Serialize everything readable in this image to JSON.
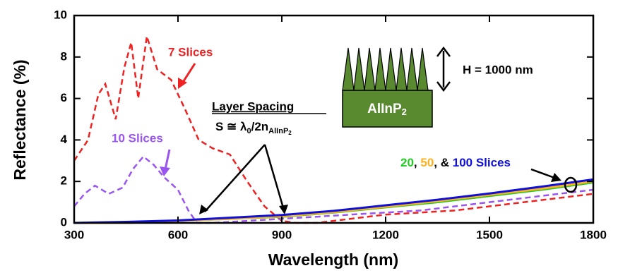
{
  "chart_data": {
    "type": "line",
    "xlabel": "Wavelength (nm)",
    "ylabel": "Reflectance (%)",
    "xlim": [
      300,
      1800
    ],
    "ylim": [
      0,
      10
    ],
    "xticks": [
      300,
      600,
      900,
      1200,
      1500,
      1800
    ],
    "yticks": [
      0,
      2,
      4,
      6,
      8,
      10
    ],
    "series": [
      {
        "name": "7 Slices",
        "color": "#ee2222",
        "dashed": true,
        "x": [
          300,
          340,
          370,
          390,
          420,
          445,
          465,
          485,
          510,
          540,
          580,
          620,
          660,
          700,
          750,
          800,
          850,
          900,
          940,
          1000,
          1100,
          1200,
          1300,
          1400,
          1500,
          1600,
          1700,
          1800
        ],
        "values": [
          3.0,
          4.0,
          6.2,
          6.7,
          5.0,
          7.5,
          8.7,
          6.0,
          9.0,
          7.4,
          6.9,
          5.5,
          4.0,
          3.6,
          3.3,
          2.0,
          0.8,
          0.1,
          0.0,
          0.0,
          0.2,
          0.4,
          0.5,
          0.6,
          0.8,
          1.0,
          1.2,
          1.4
        ]
      },
      {
        "name": "10 Slices",
        "color": "#9955ee",
        "dashed": true,
        "x": [
          300,
          330,
          360,
          400,
          440,
          470,
          500,
          530,
          560,
          600,
          630,
          655,
          700,
          800,
          900,
          1000,
          1100,
          1200,
          1300,
          1400,
          1500,
          1600,
          1700,
          1800
        ],
        "values": [
          0.8,
          1.4,
          1.8,
          1.4,
          1.7,
          2.6,
          3.2,
          2.8,
          2.2,
          1.6,
          0.6,
          0.0,
          0.0,
          0.1,
          0.2,
          0.3,
          0.4,
          0.5,
          0.6,
          0.8,
          1.0,
          1.2,
          1.4,
          1.6
        ]
      },
      {
        "name": "20",
        "color": "#22cc22",
        "dashed": false,
        "x": [
          300,
          450,
          600,
          750,
          900,
          1050,
          1200,
          1350,
          1500,
          1650,
          1800
        ],
        "values": [
          0.0,
          0.0,
          0.1,
          0.2,
          0.3,
          0.5,
          0.75,
          1.0,
          1.3,
          1.6,
          1.95
        ]
      },
      {
        "name": "50",
        "color": "#ffb020",
        "dashed": false,
        "x": [
          300,
          450,
          600,
          750,
          900,
          1050,
          1200,
          1350,
          1500,
          1650,
          1800
        ],
        "values": [
          0.0,
          0.0,
          0.1,
          0.2,
          0.32,
          0.52,
          0.78,
          1.05,
          1.35,
          1.65,
          2.0
        ]
      },
      {
        "name": "100 Slices",
        "color": "#1010dd",
        "dashed": false,
        "x": [
          300,
          450,
          600,
          750,
          900,
          1050,
          1200,
          1350,
          1500,
          1650,
          1800
        ],
        "values": [
          0.0,
          0.05,
          0.12,
          0.25,
          0.38,
          0.58,
          0.85,
          1.12,
          1.42,
          1.75,
          2.1
        ]
      }
    ],
    "annotations": {
      "layer_spacing": "Layer Spacing",
      "formula_main": "S ≅ λ",
      "formula_sub0": "0",
      "formula_mid": "/2n",
      "formula_sub1": "AlInP",
      "formula_sub2": "2",
      "height": "H = 1000 nm",
      "material": "AlInP",
      "material_sub": "2",
      "sep1": ", ",
      "sep2": ", & "
    }
  }
}
